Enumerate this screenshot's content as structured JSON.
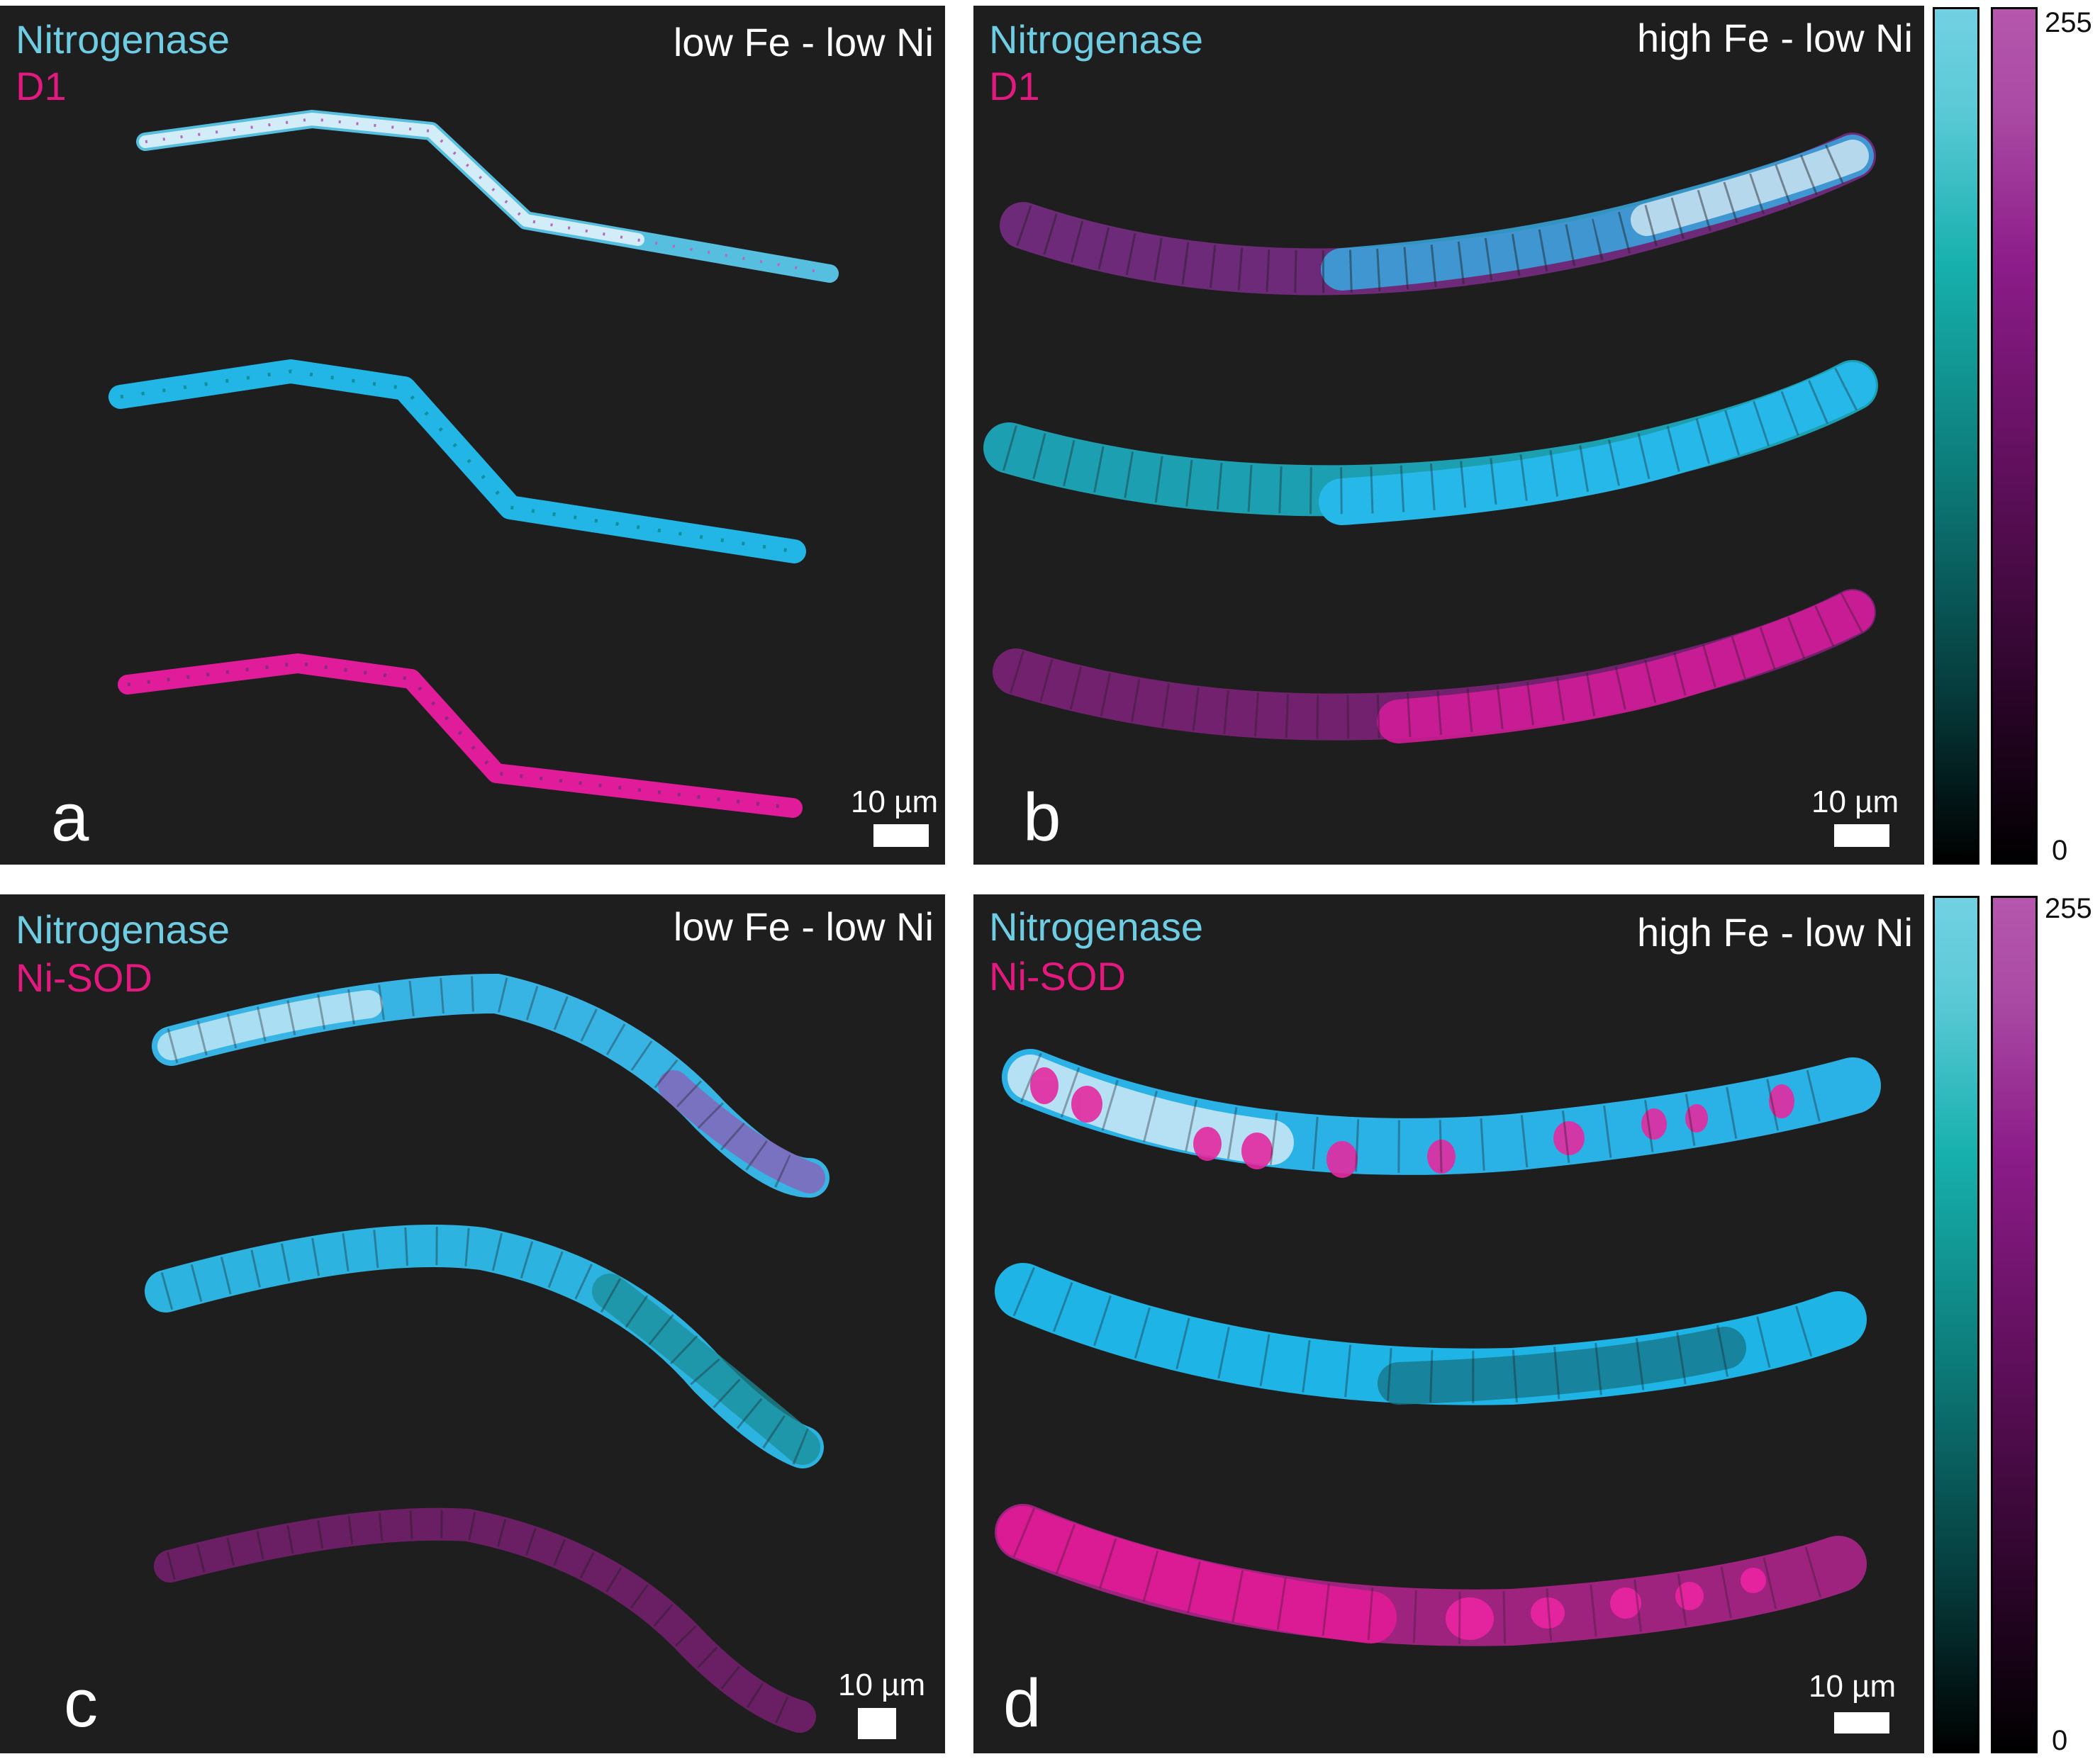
{
  "panels": [
    {
      "letter": "a",
      "stain_top": "Nitrogenase",
      "stain_bottom": "D1",
      "condition": "low Fe - low Ni",
      "scale_bar": "10 µm"
    },
    {
      "letter": "b",
      "stain_top": "Nitrogenase",
      "stain_bottom": "D1",
      "condition": "high Fe - low Ni",
      "scale_bar": "10 µm"
    },
    {
      "letter": "c",
      "stain_top": "Nitrogenase",
      "stain_bottom": "Ni-SOD",
      "condition": "low Fe - low Ni",
      "scale_bar": "10 µm"
    },
    {
      "letter": "d",
      "stain_top": "Nitrogenase",
      "stain_bottom": "Ni-SOD",
      "condition": "high Fe - low Ni",
      "scale_bar": "10 µm"
    }
  ],
  "colorbars": {
    "max_label": "255",
    "min_label": "0",
    "cyan_color": "#72d1e2",
    "magenta_color": "#b657ad"
  },
  "colors": {
    "background": "#1f1e1e",
    "nitrogenase_label": "#6fcde3",
    "stain_label": "#e4197f"
  }
}
